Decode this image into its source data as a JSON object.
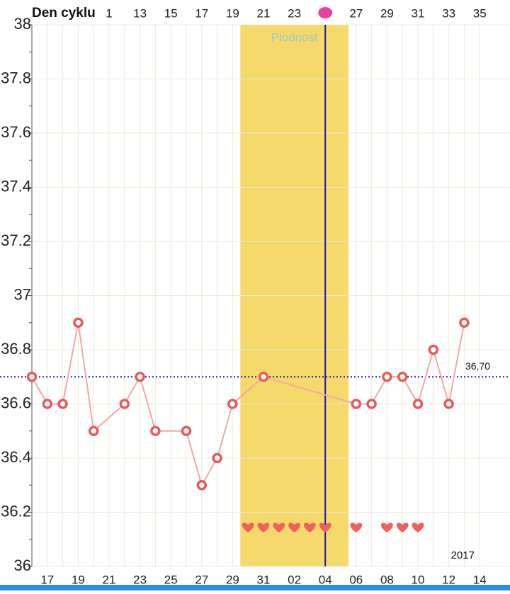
{
  "chart_data": {
    "type": "line",
    "title": "Den cyklu",
    "annotation": "Plodnost",
    "year_label": "2017",
    "reference_value": 36.7,
    "reference_label": "36,70",
    "categories": [
      null,
      "17",
      null,
      "19",
      null,
      "21",
      null,
      "23",
      null,
      "25",
      null,
      "27",
      null,
      "29",
      null,
      "31",
      null,
      "02",
      null,
      "04",
      null,
      "06",
      null,
      "08",
      null,
      "10",
      null,
      "12",
      null,
      "14"
    ],
    "cycle_day_labels": [
      null,
      null,
      null,
      null,
      null,
      "1",
      null,
      "13",
      null,
      "15",
      null,
      "17",
      null,
      "19",
      null,
      "21",
      null,
      "23",
      null,
      null,
      null,
      "27",
      null,
      "29",
      null,
      "31",
      null,
      "33",
      null,
      "35"
    ],
    "series": [
      {
        "color": "#e85a5a",
        "values": [
          36.7,
          36.6,
          36.6,
          36.9,
          36.5,
          null,
          36.6,
          36.7,
          36.5,
          null,
          36.5,
          36.3,
          36.4,
          36.6,
          null,
          36.7,
          null,
          null,
          null,
          null,
          null,
          36.6,
          36.6,
          36.7,
          36.7,
          36.6,
          36.8,
          36.6,
          36.9,
          null
        ]
      }
    ],
    "fertile_window": [
      14,
      20
    ],
    "ovulation_index": 19,
    "intercourse_indices": [
      14,
      15,
      16,
      17,
      18,
      19,
      21,
      23,
      24,
      25
    ],
    "ylim": [
      36,
      38
    ],
    "yticks": [
      36,
      36.2,
      36.4,
      36.6,
      36.8,
      37,
      37.2,
      37.4,
      37.6,
      37.8,
      38
    ],
    "grid": true
  }
}
